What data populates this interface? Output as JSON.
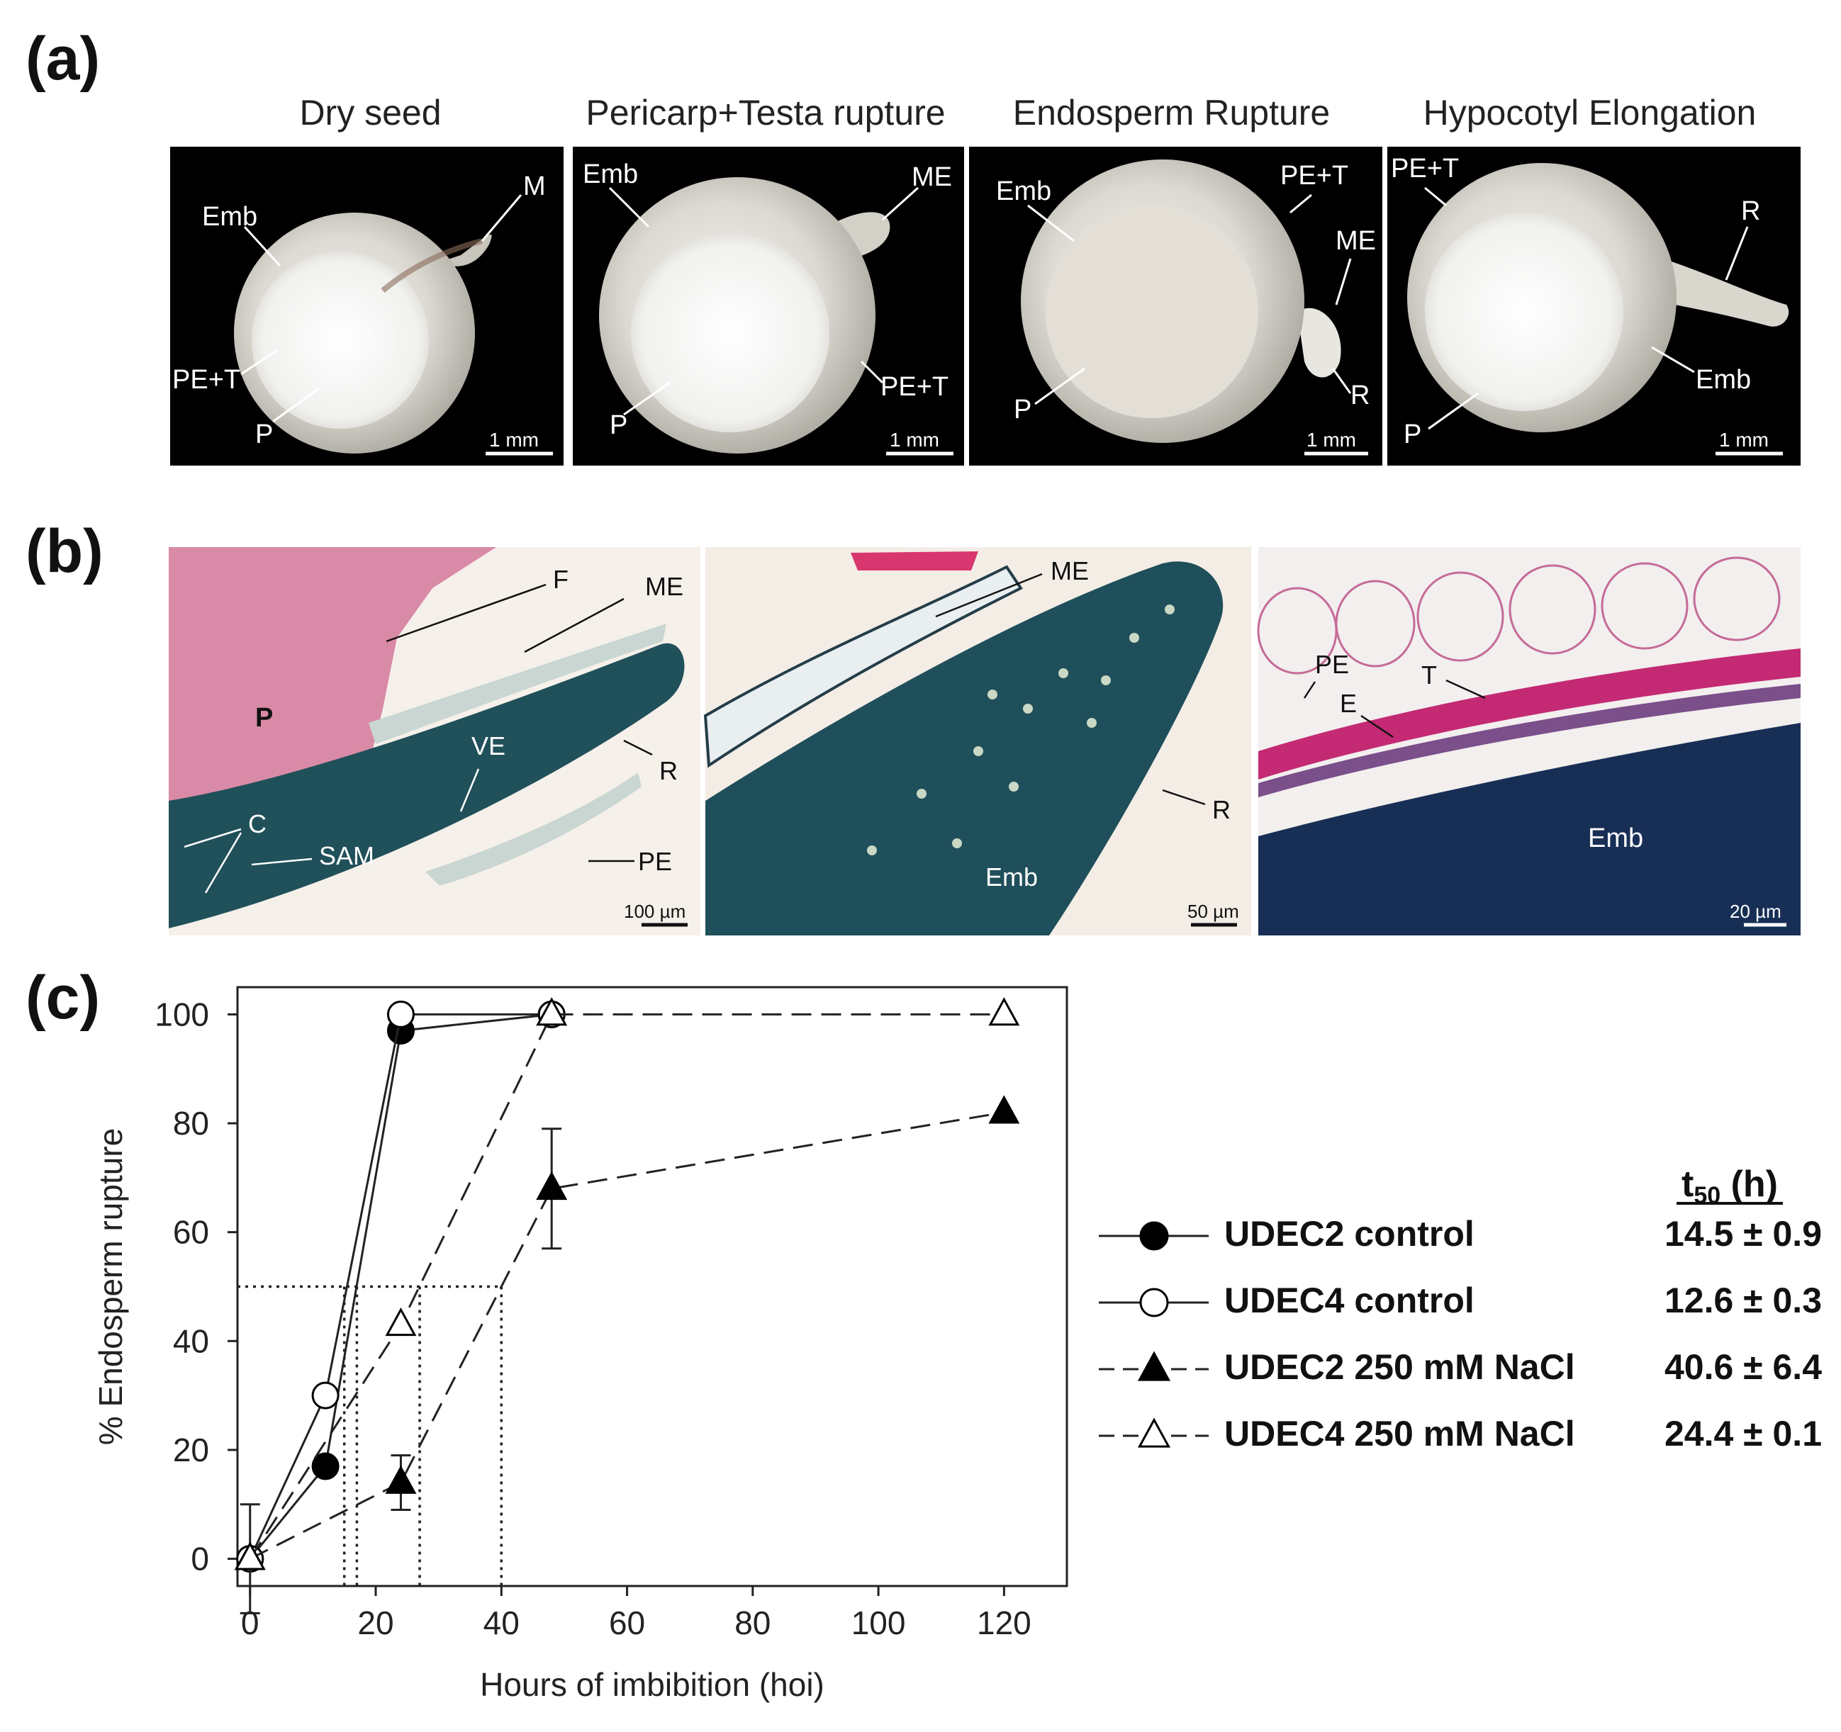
{
  "panels": {
    "a": "(a)",
    "b": "(b)",
    "c": "(c)"
  },
  "seed_photos": [
    {
      "title": "Dry seed",
      "labels": [
        "Emb",
        "M",
        "PE+T",
        "P"
      ],
      "scale_text": "1 mm"
    },
    {
      "title": "Pericarp+Testa rupture",
      "labels": [
        "Emb",
        "ME",
        "PE+T",
        "P"
      ],
      "scale_text": "1 mm"
    },
    {
      "title": "Endosperm Rupture",
      "labels": [
        "Emb",
        "PE+T",
        "ME",
        "P",
        "R"
      ],
      "scale_text": "1 mm"
    },
    {
      "title": "Hypocotyl Elongation",
      "labels": [
        "PE+T",
        "R",
        "Emb",
        "P"
      ],
      "scale_text": "1 mm"
    }
  ],
  "sections": [
    {
      "labels": [
        "F",
        "ME",
        "P",
        "VE",
        "R",
        "C",
        "SAM",
        "PE"
      ],
      "scale_text": "100 µm"
    },
    {
      "labels": [
        "ME",
        "R",
        "Emb"
      ],
      "scale_text": "50 µm"
    },
    {
      "labels": [
        "PE",
        "T",
        "E",
        "Emb"
      ],
      "scale_text": "20 µm"
    }
  ],
  "chart_data": {
    "type": "line",
    "xlabel": "Hours of imbibition (hoi)",
    "ylabel": "% Endosperm rupture",
    "xlim": [
      -2,
      130
    ],
    "ylim": [
      -5,
      105
    ],
    "xticks": [
      0,
      20,
      40,
      60,
      80,
      100,
      120
    ],
    "yticks": [
      0,
      20,
      40,
      60,
      80,
      100
    ],
    "series": [
      {
        "name": "UDEC2 control",
        "marker": "circle-filled",
        "line": "solid",
        "x": [
          0,
          12,
          24,
          48
        ],
        "y": [
          0,
          17,
          97,
          100
        ],
        "t50": "14.5 ± 0.9"
      },
      {
        "name": "UDEC4 control",
        "marker": "circle-open",
        "line": "solid",
        "x": [
          0,
          12,
          24,
          48
        ],
        "y": [
          0,
          30,
          100,
          100
        ],
        "t50": "12.6 ± 0.3"
      },
      {
        "name": "UDEC2 250 mM NaCl",
        "marker": "triangle-filled",
        "line": "dashed",
        "x": [
          0,
          24,
          48,
          120
        ],
        "y": [
          0,
          14,
          68,
          82
        ],
        "err": [
          10,
          5,
          11,
          0
        ],
        "t50": "40.6 ± 6.4"
      },
      {
        "name": "UDEC4 250 mM NaCl",
        "marker": "triangle-open",
        "line": "dashed",
        "x": [
          0,
          24,
          48,
          120
        ],
        "y": [
          0,
          43,
          100,
          100
        ],
        "t50": "24.4 ± 0.1"
      }
    ],
    "reference_y": 50,
    "reference_x": [
      15,
      17,
      27,
      40
    ],
    "legend_header": "t50 (h)"
  },
  "colors": {
    "photo_bg": "#000000",
    "seed": "#c9c6bd",
    "section_pink": "#d98aa6",
    "section_teal": "#1f4f5a",
    "stain_magenta": "#c42a74"
  }
}
